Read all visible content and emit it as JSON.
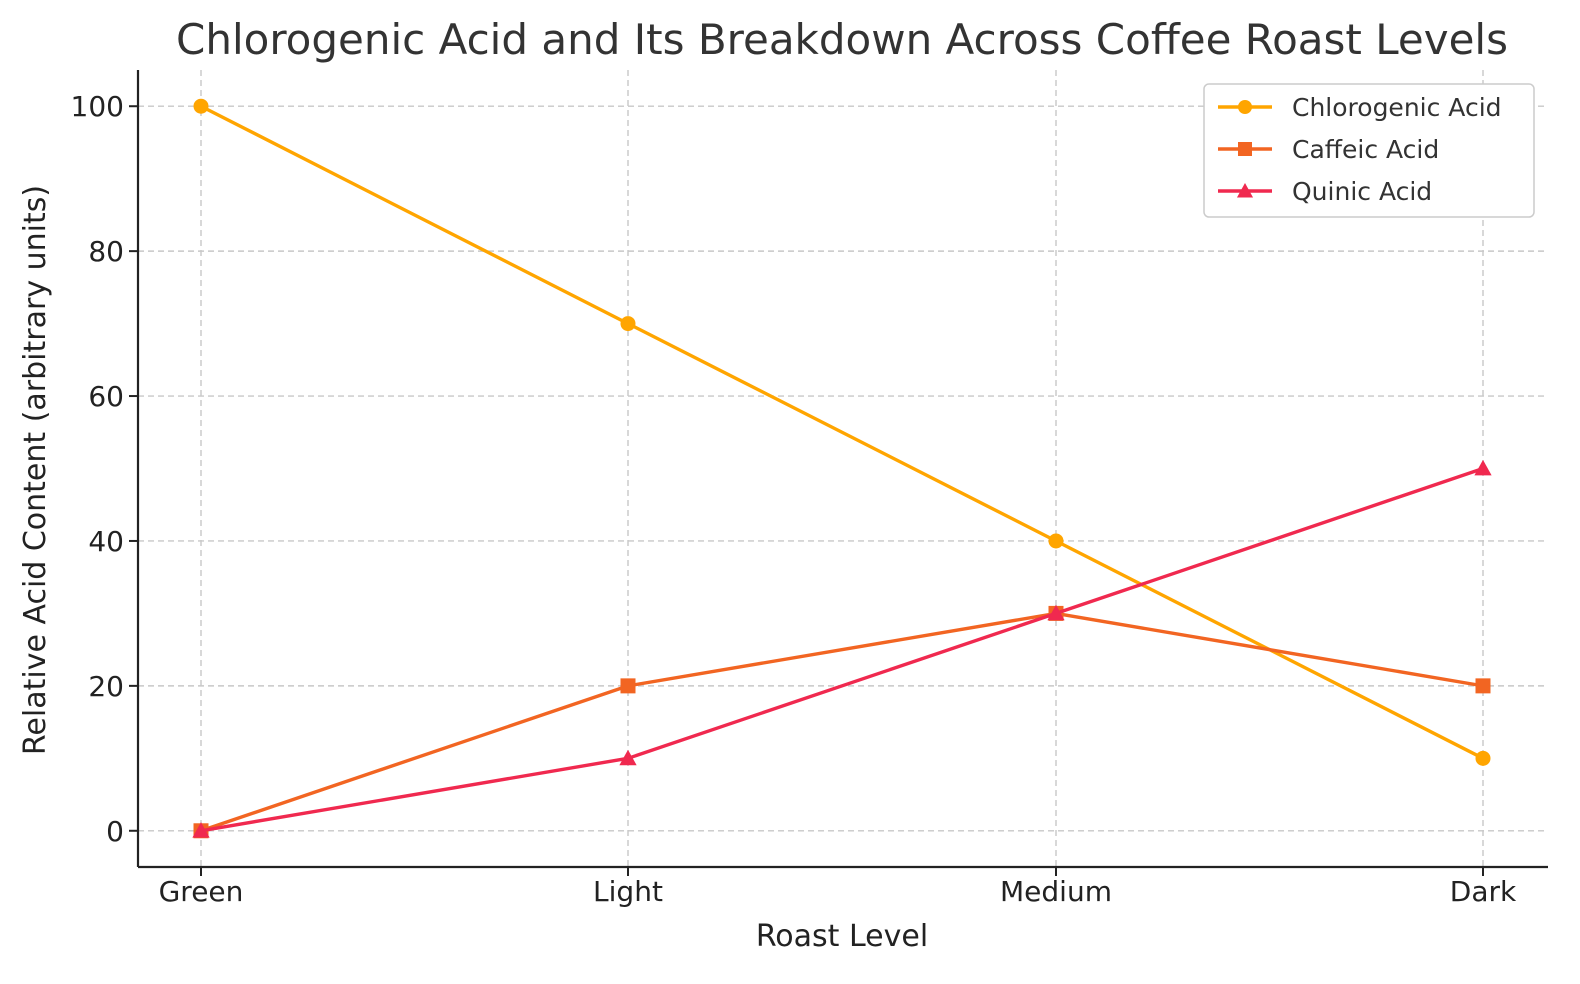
{
  "chart_data": {
    "type": "line",
    "title": "Chlorogenic Acid and Its Breakdown Across Coffee Roast Levels",
    "xlabel": "Roast Level",
    "ylabel": "Relative Acid Content (arbitrary units)",
    "categories": [
      "Green",
      "Light",
      "Medium",
      "Dark"
    ],
    "ylim": [
      -5,
      105
    ],
    "yticks": [
      0,
      20,
      40,
      60,
      80,
      100
    ],
    "grid": true,
    "legend_position": "top-right",
    "series": [
      {
        "name": "Chlorogenic Acid",
        "values": [
          100,
          70,
          40,
          10
        ],
        "color": "#FFA500",
        "marker": "circle"
      },
      {
        "name": "Caffeic Acid",
        "values": [
          0,
          20,
          30,
          20
        ],
        "color": "#F26522",
        "marker": "square"
      },
      {
        "name": "Quinic Acid",
        "values": [
          0,
          10,
          30,
          50
        ],
        "color": "#F0294F",
        "marker": "triangle"
      }
    ]
  }
}
